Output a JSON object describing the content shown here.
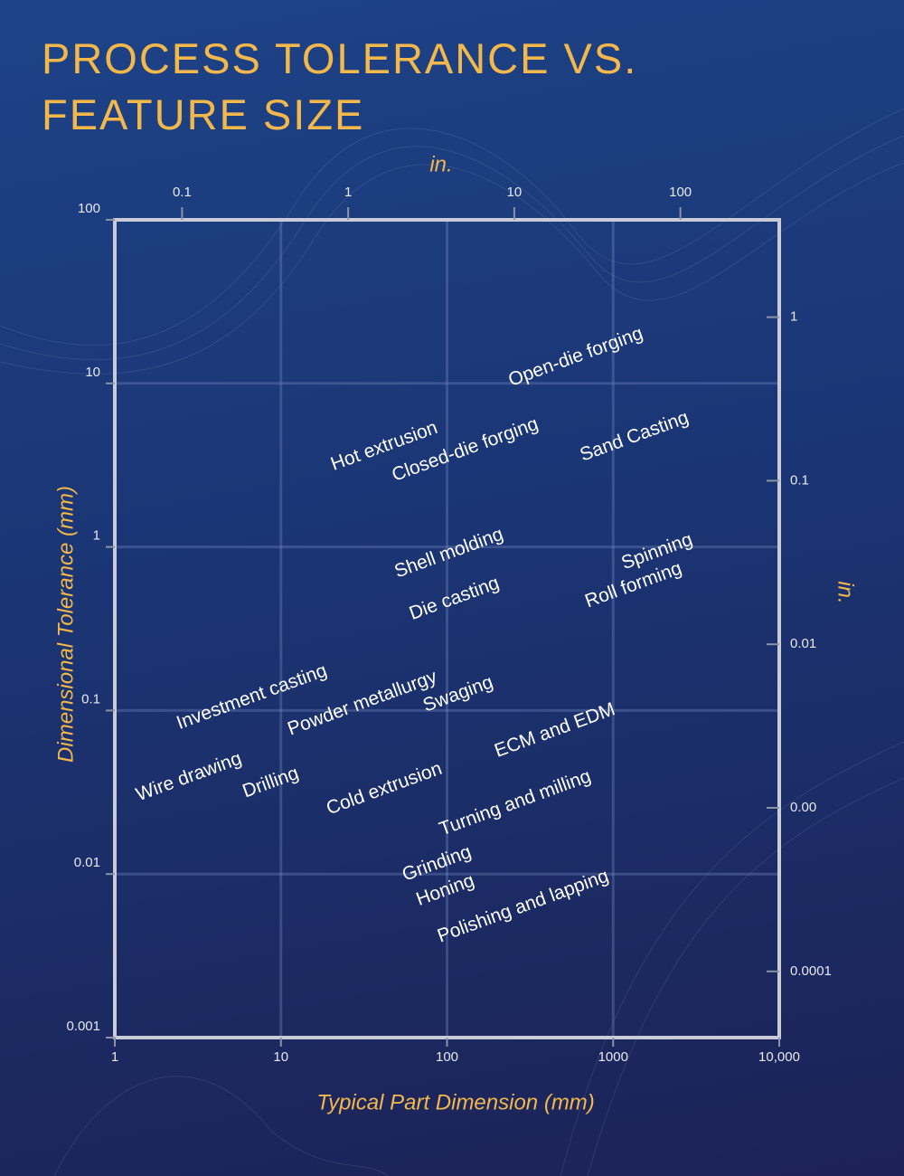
{
  "chart_data": {
    "type": "scatter",
    "title": "PROCESS TOLERANCE VS. FEATURE SIZE",
    "x_label": "Typical Part Dimension (mm)",
    "y_label": "Dimensional Tolerance (mm)",
    "x2_label": "in.",
    "y2_label": "in.",
    "xscale": "log",
    "yscale": "log",
    "grid": true,
    "label_color": "#ffffff",
    "xlim": [
      1,
      10000
    ],
    "xticks": [
      1,
      10,
      100,
      1000,
      {
        "value": 10000,
        "label": "10,000"
      }
    ],
    "ylim": [
      0.001,
      100
    ],
    "yticks": [
      100,
      10,
      1,
      0.1,
      0.01,
      0.001
    ],
    "x2lim": [
      0.03937,
      393.7
    ],
    "x2ticks": [
      0.1,
      1,
      10,
      100
    ],
    "y2lim": [
      3.937e-05,
      3.937
    ],
    "y2ticks": [
      1,
      0.1,
      0.01,
      {
        "value": 0.001,
        "label": "0.00"
      },
      0.0001
    ],
    "points": [
      {
        "label": "Open-die forging",
        "x": 597,
        "y": 14.4
      },
      {
        "label": "Hot extrusion",
        "x": 42,
        "y": 4.1
      },
      {
        "label": "Closed-die forging",
        "x": 129,
        "y": 3.9
      },
      {
        "label": "Sand Casting",
        "x": 1346,
        "y": 4.7
      },
      {
        "label": "Shell molding",
        "x": 103,
        "y": 0.91
      },
      {
        "label": "Spinning",
        "x": 1842,
        "y": 0.93
      },
      {
        "label": "Die casting",
        "x": 111,
        "y": 0.48
      },
      {
        "label": "Roll forming",
        "x": 1330,
        "y": 0.58
      },
      {
        "label": "Investment casting",
        "x": 6.7,
        "y": 0.12
      },
      {
        "label": "Powder metallurgy",
        "x": 31,
        "y": 0.11
      },
      {
        "label": "Swaging",
        "x": 117,
        "y": 0.125
      },
      {
        "label": "Wire drawing",
        "x": 2.8,
        "y": 0.039
      },
      {
        "label": "Drilling",
        "x": 8.7,
        "y": 0.036
      },
      {
        "label": "Cold extrusion",
        "x": 42,
        "y": 0.033
      },
      {
        "label": "ECM and EDM",
        "x": 447,
        "y": 0.075
      },
      {
        "label": "Turning and milling",
        "x": 258,
        "y": 0.027
      },
      {
        "label": "Grinding",
        "x": 87,
        "y": 0.0115
      },
      {
        "label": "Honing",
        "x": 98,
        "y": 0.0079
      },
      {
        "label": "Polishing and lapping",
        "x": 288,
        "y": 0.0063
      }
    ]
  }
}
